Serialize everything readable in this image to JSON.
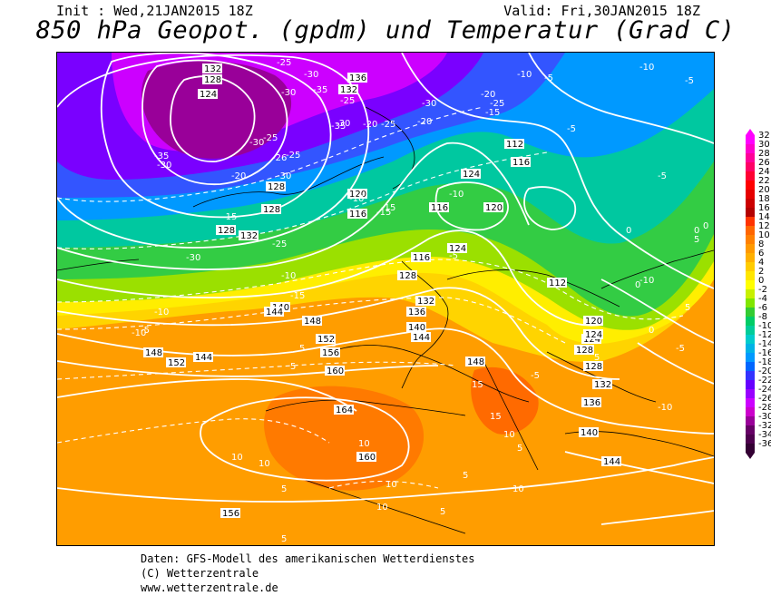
{
  "header": {
    "init_text": "Init : Wed,21JAN2015 18Z",
    "valid_text": "Valid: Fri,30JAN2015 18Z",
    "title": "850 hPa Geopot. (gpdm) und Temperatur (Grad C)"
  },
  "legend": {
    "values": [
      "32",
      "30",
      "28",
      "26",
      "24",
      "22",
      "20",
      "18",
      "16",
      "14",
      "12",
      "10",
      "8",
      "6",
      "4",
      "2",
      "0",
      "-2",
      "-4",
      "-6",
      "-8",
      "-10",
      "-12",
      "-14",
      "-16",
      "-18",
      "-20",
      "-22",
      "-24",
      "-26",
      "-28",
      "-30",
      "-32",
      "-34",
      "-36"
    ],
    "colors": [
      "#ff00ff",
      "#ff00cc",
      "#ff0099",
      "#ff0066",
      "#ff0033",
      "#ff0000",
      "#e60000",
      "#cc0000",
      "#b30000",
      "#ff3300",
      "#ff6600",
      "#ff8000",
      "#ff9900",
      "#ffb000",
      "#ffcc00",
      "#ffe600",
      "#ffff00",
      "#c8f000",
      "#80e600",
      "#33cc33",
      "#00cc66",
      "#00cc99",
      "#00cccc",
      "#00b3e6",
      "#0099ff",
      "#0066ff",
      "#3333ff",
      "#6600ff",
      "#9900ff",
      "#cc00ff",
      "#cc00cc",
      "#990099",
      "#660066",
      "#4d004d",
      "#330033"
    ]
  },
  "map": {
    "geopotential_labels": [
      "132",
      "128",
      "124",
      "136",
      "132",
      "128",
      "128",
      "128",
      "132",
      "120",
      "116",
      "116",
      "124",
      "112",
      "116",
      "112",
      "120",
      "124",
      "128",
      "124",
      "116",
      "120",
      "128",
      "132",
      "136",
      "140",
      "144",
      "140",
      "144",
      "148",
      "152",
      "156",
      "160",
      "164",
      "160",
      "156",
      "152",
      "148",
      "144",
      "140",
      "136",
      "132",
      "128",
      "124",
      "148",
      "144"
    ],
    "temperature_labels": [
      "-25",
      "-30",
      "-35",
      "-30",
      "-25",
      "-30",
      "-35",
      "-30",
      "-25",
      "-26",
      "-30",
      "-20",
      "-30",
      "-25",
      "-20",
      "-25",
      "-30",
      "-20",
      "-35",
      "-15",
      "-30",
      "-25",
      "-15",
      "-10",
      "-15",
      "-10",
      "-5",
      "-10",
      "-5",
      "-5",
      "-10",
      "-15",
      "-10",
      "-20",
      "-25",
      "-15",
      "-10",
      "-5",
      "-5",
      "-10",
      "-5",
      "0",
      "-10",
      "-5",
      "0",
      "5",
      "5",
      "5",
      "10",
      "10",
      "10",
      "15",
      "15",
      "10",
      "5",
      "5",
      "10",
      "10",
      "5",
      "10",
      "5",
      "5",
      "0",
      "5",
      "0",
      "5",
      "0",
      "-5",
      "-10",
      "-5",
      "5"
    ]
  },
  "footer": {
    "line1": "Daten: GFS-Modell des amerikanischen Wetterdienstes",
    "line2": "(C) Wetterzentrale",
    "line3": "www.wetterzentrale.de"
  }
}
